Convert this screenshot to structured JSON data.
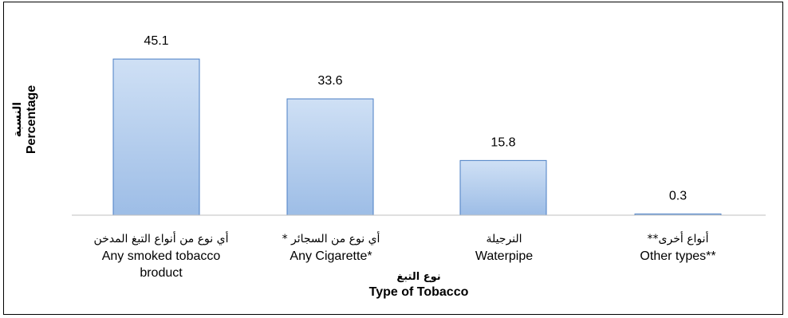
{
  "chart_data": {
    "type": "bar",
    "categories": [
      {
        "ar": "أي نوع من أنواع التبغ المدخن",
        "en": "Any smoked tobacco",
        "en2": "broduct"
      },
      {
        "ar": "أي نوع من السجائر *",
        "en": "Any Cigarette*",
        "en2": ""
      },
      {
        "ar": "النرجيلة",
        "en": "Waterpipe",
        "en2": ""
      },
      {
        "ar": "أنواع أخرى**",
        "en": "Other types**",
        "en2": ""
      }
    ],
    "values": [
      45.1,
      33.6,
      15.8,
      0.3
    ],
    "value_labels": [
      "45.1",
      "33.6",
      "15.8",
      "0.3"
    ],
    "ylabel_ar": "النسبة",
    "ylabel_en": "Percentage",
    "xlabel_ar": "نوع التبغ",
    "xlabel_en": "Type of Tobacco",
    "ylim": [
      0,
      50
    ],
    "grid": false,
    "legend": "none",
    "bar_color_top": "#cfe0f5",
    "bar_color_bottom": "#9dbde6",
    "bar_border": "#4a7ec4",
    "axis_color": "#bfbfbf"
  }
}
